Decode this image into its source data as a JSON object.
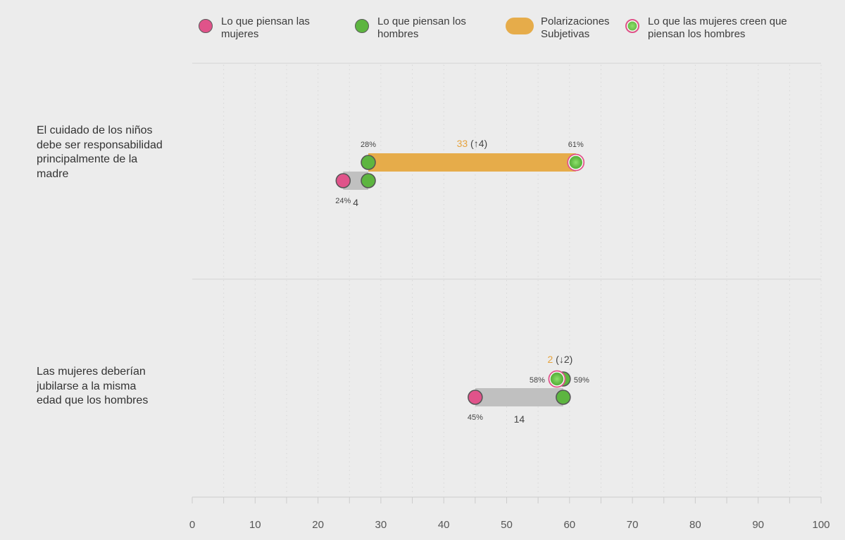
{
  "legend": {
    "women": "Lo que piensan las\nmujeres",
    "men": "Lo que piensan los\nhombres",
    "polarization": "Polarizaciones\nSubjetivas",
    "women_believe_men": "Lo que las mujeres creen que\npiensan los hombres"
  },
  "colors": {
    "women": "#e0538a",
    "men": "#5db540",
    "polarization": "#e6ac4a",
    "gap": "#c0c0c0",
    "axis": "#cccccc",
    "accent_text": "#e6a23c"
  },
  "chart_data": {
    "type": "dumbbell",
    "xlim": [
      0,
      100
    ],
    "xticks": [
      0,
      10,
      20,
      30,
      40,
      50,
      60,
      70,
      80,
      90,
      100
    ],
    "grid": true,
    "legend_position": "top",
    "rows": [
      {
        "question": "El cuidado de los niños\ndebe ser responsabilidad\nprincipalmente de la\nmadre",
        "women": 24,
        "men": 28,
        "women_believe_men": 61,
        "gap": "4",
        "polarization": "33",
        "polarization_change": "(↑4)",
        "women_label": "24%",
        "men_label": "28%",
        "believe_label": "61%"
      },
      {
        "question": "Las mujeres deberían\njubilarse a la misma\nedad que los hombres",
        "women": 45,
        "men": 59,
        "women_believe_men": 58,
        "gap": "14",
        "polarization": "2",
        "polarization_change": "(↓2)",
        "women_label": "45%",
        "men_label": "59%",
        "believe_label": "58%"
      }
    ]
  }
}
